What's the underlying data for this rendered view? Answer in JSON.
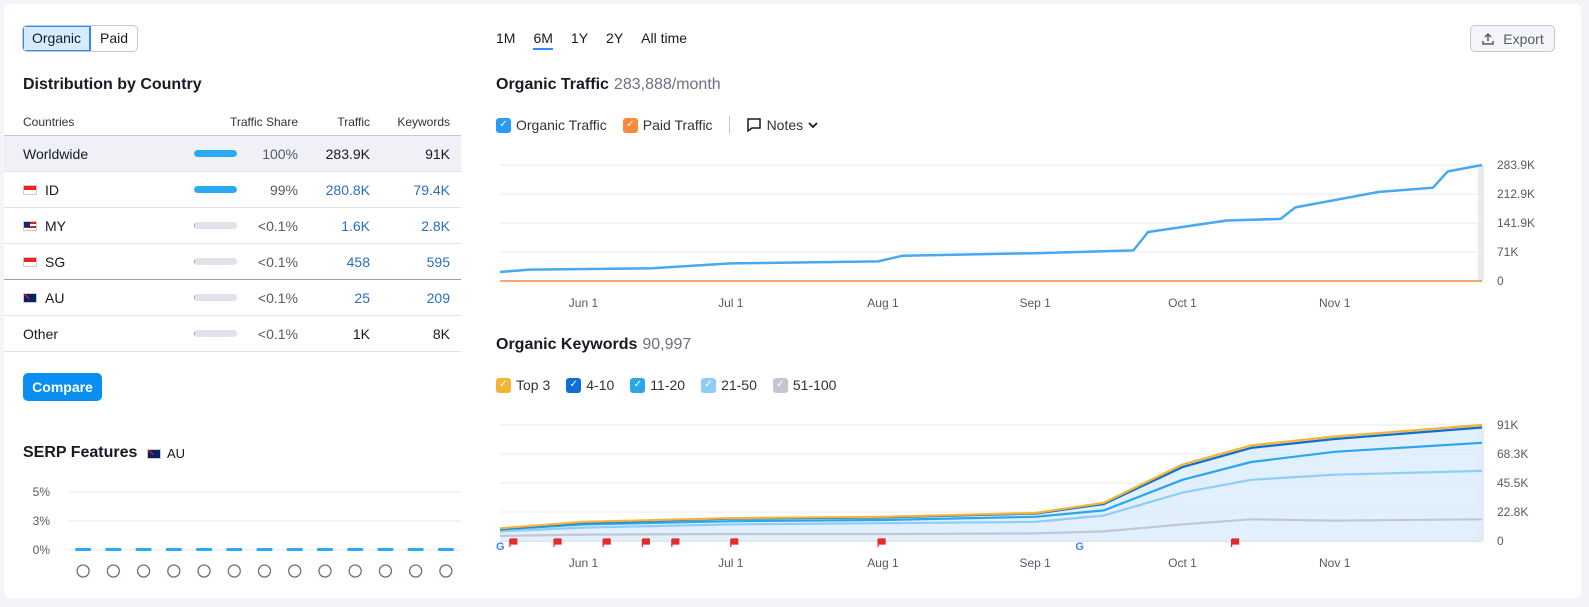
{
  "toggle": {
    "organic": "Organic",
    "paid": "Paid"
  },
  "distribution": {
    "title": "Distribution by Country",
    "headers": {
      "countries": "Countries",
      "share": "Traffic Share",
      "traffic": "Traffic",
      "keywords": "Keywords"
    },
    "rows": [
      {
        "name": "Worldwide",
        "flag": "",
        "share_pct": 100,
        "share": "100%",
        "traffic": "283.9K",
        "keywords": "91K"
      },
      {
        "name": "ID",
        "flag": "id",
        "share_pct": 99,
        "share": "99%",
        "traffic": "280.8K",
        "keywords": "79.4K"
      },
      {
        "name": "MY",
        "flag": "my",
        "share_pct": 1,
        "share": "<0.1%",
        "traffic": "1.6K",
        "keywords": "2.8K"
      },
      {
        "name": "SG",
        "flag": "sg",
        "share_pct": 1,
        "share": "<0.1%",
        "traffic": "458",
        "keywords": "595"
      },
      {
        "name": "AU",
        "flag": "au",
        "share_pct": 1,
        "share": "<0.1%",
        "traffic": "25",
        "keywords": "209"
      },
      {
        "name": "Other",
        "flag": "",
        "share_pct": 1,
        "share": "<0.1%",
        "traffic": "1K",
        "keywords": "8K"
      }
    ],
    "compare": "Compare"
  },
  "serp": {
    "title": "SERP Features",
    "country": "AU",
    "y_ticks": [
      "5%",
      "3%",
      "0%"
    ],
    "icons": [
      "graduation-cap-icon",
      "location-pin-icon",
      "article-icon",
      "image-gallery-icon",
      "link-icon",
      "star-icon",
      "play-icon",
      "video-icon",
      "crown-icon",
      "image-icon",
      "play-circle-icon",
      "review-icon",
      "question-icon"
    ]
  },
  "periods": [
    "1M",
    "6M",
    "1Y",
    "2Y",
    "All time"
  ],
  "selected_period": "6M",
  "export": "Export",
  "traffic_chart": {
    "title": "Organic Traffic",
    "value": "283,888/month",
    "legend": {
      "organic": "Organic Traffic",
      "paid": "Paid Traffic",
      "notes": "Notes"
    }
  },
  "keywords_chart": {
    "title": "Organic Keywords",
    "value": "90,997",
    "legend": [
      "Top 3",
      "4-10",
      "11-20",
      "21-50",
      "51-100"
    ]
  },
  "colors": {
    "organic": "#4aa9ee",
    "paid": "#f68c3b",
    "top3": "#f4b436",
    "k4_10": "#0d6fd6",
    "k11_20": "#2aa6ec",
    "k21_50": "#8fcdf6",
    "k51_100": "#c2c7d3"
  },
  "chart_data": [
    {
      "type": "line",
      "title": "Organic Traffic",
      "x_ticks": [
        "Jun 1",
        "Jul 1",
        "Aug 1",
        "Sep 1",
        "Oct 1",
        "Nov 1"
      ],
      "y_ticks": [
        "283.9K",
        "212.9K",
        "141.9K",
        "71K",
        "0"
      ],
      "ylim": [
        0,
        283888
      ],
      "series": [
        {
          "name": "Organic Traffic",
          "x": [
            "2024-05-15",
            "2024-05-21",
            "2024-06-15",
            "2024-07-01",
            "2024-07-31",
            "2024-08-05",
            "2024-09-01",
            "2024-09-15",
            "2024-09-21",
            "2024-09-24",
            "2024-10-10",
            "2024-10-21",
            "2024-10-24",
            "2024-11-10",
            "2024-11-21",
            "2024-11-24",
            "2024-12-01"
          ],
          "values": [
            22000,
            28000,
            31000,
            43000,
            48000,
            62000,
            68000,
            73000,
            75000,
            120000,
            148000,
            152000,
            180000,
            218000,
            228000,
            268000,
            283888
          ]
        },
        {
          "name": "Paid Traffic",
          "x": [
            "2024-05-15",
            "2024-12-01"
          ],
          "values": [
            0,
            0
          ]
        }
      ]
    },
    {
      "type": "area",
      "title": "Organic Keywords",
      "x_ticks": [
        "Jun 1",
        "Jul 1",
        "Aug 1",
        "Sep 1",
        "Oct 1",
        "Nov 1"
      ],
      "y_ticks": [
        "91K",
        "68.3K",
        "45.5K",
        "22.8K",
        "0"
      ],
      "ylim": [
        0,
        91000
      ],
      "x": [
        "2024-05-15",
        "2024-06-01",
        "2024-07-01",
        "2024-08-01",
        "2024-09-01",
        "2024-09-15",
        "2024-10-01",
        "2024-10-15",
        "2024-11-01",
        "2024-12-01"
      ],
      "series": [
        {
          "name": "Top 3",
          "values": [
            10000,
            15000,
            18000,
            19000,
            22000,
            30000,
            60000,
            75000,
            82000,
            90997
          ]
        },
        {
          "name": "4-10",
          "values": [
            9500,
            14500,
            17500,
            18500,
            21500,
            29000,
            58000,
            73000,
            80000,
            89000
          ]
        },
        {
          "name": "11-20",
          "values": [
            9000,
            13000,
            15500,
            16500,
            19000,
            24000,
            48000,
            62000,
            70000,
            77000
          ]
        },
        {
          "name": "21-50",
          "values": [
            7500,
            10500,
            13000,
            14000,
            15000,
            20000,
            38000,
            48000,
            52000,
            55000
          ]
        },
        {
          "name": "51-100",
          "values": [
            4000,
            5000,
            5500,
            5500,
            6000,
            7500,
            13000,
            17000,
            16000,
            17000
          ]
        }
      ]
    },
    {
      "type": "bar",
      "title": "SERP Features",
      "y_ticks": [
        "5%",
        "3%",
        "0%"
      ],
      "values": [
        0,
        0,
        0,
        0,
        0,
        0,
        0,
        0,
        0,
        0,
        0,
        0,
        0
      ]
    }
  ]
}
